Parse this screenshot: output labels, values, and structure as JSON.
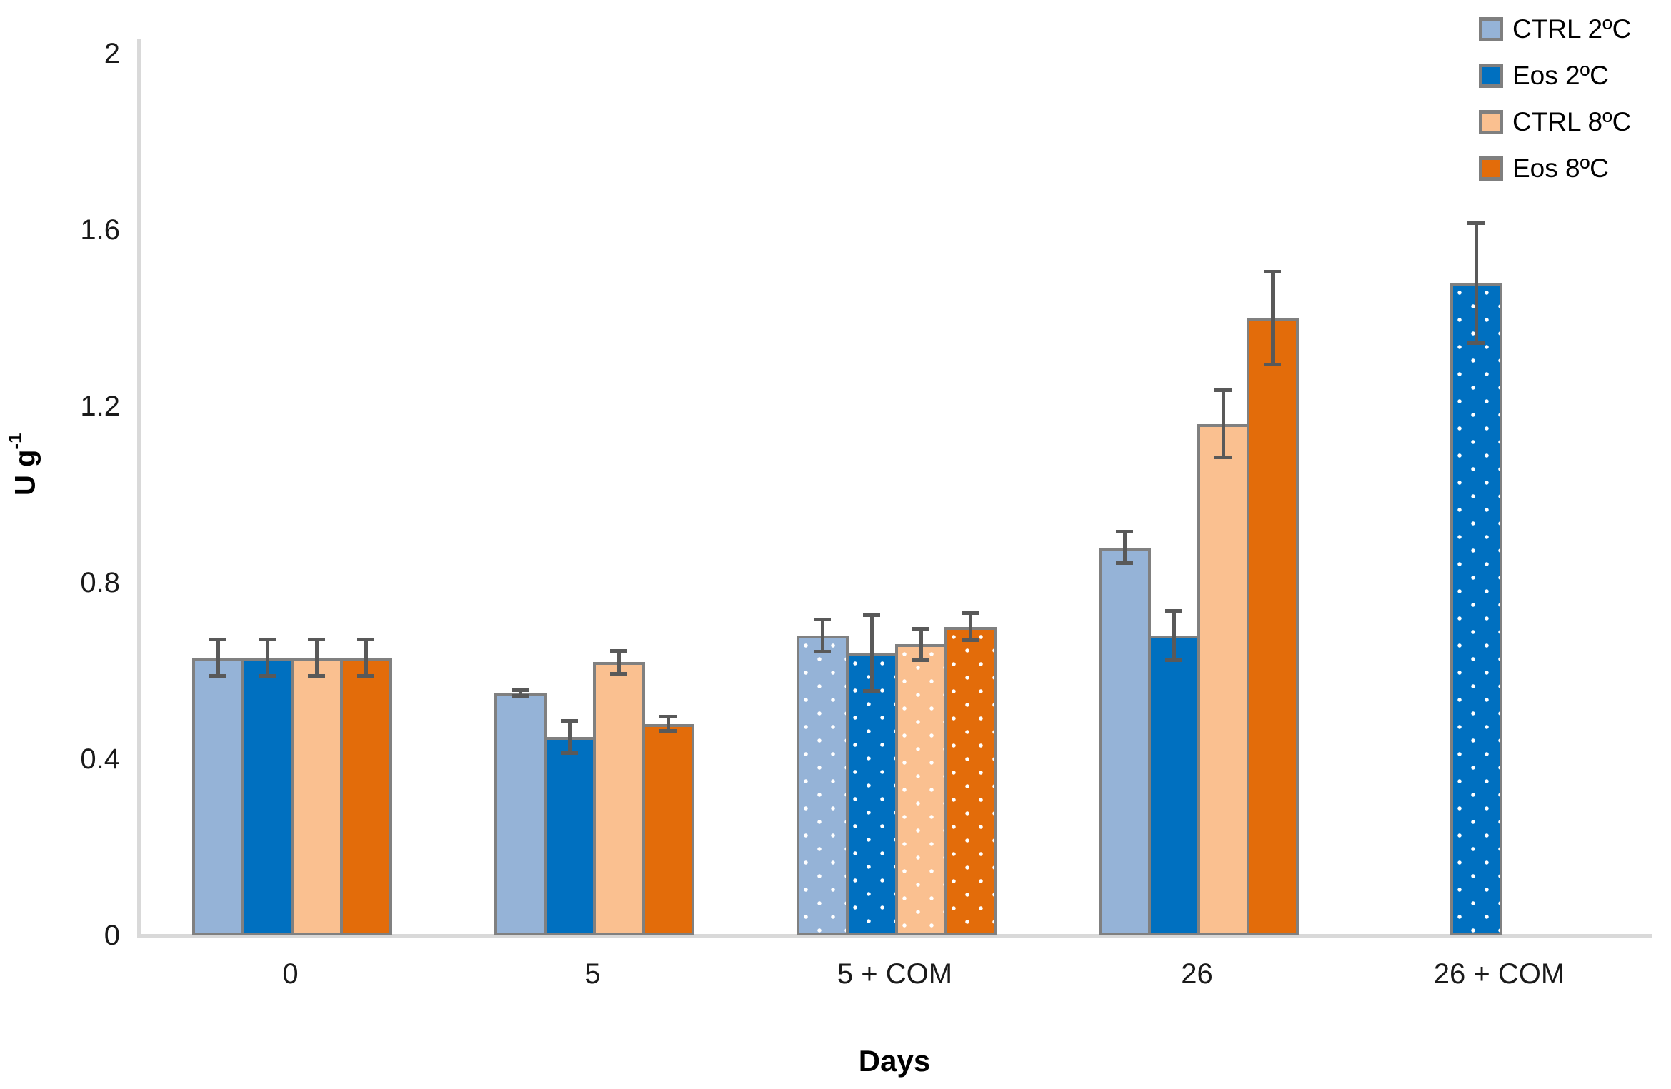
{
  "chart_data": {
    "type": "bar",
    "xlabel": "Days",
    "ylabel": {
      "base": "U g",
      "sup": "-1"
    },
    "ylim": [
      0,
      2
    ],
    "yticks": [
      "0",
      "0.4",
      "0.8",
      "1.2",
      "1.6",
      "2"
    ],
    "ytick_values": [
      0,
      0.4,
      0.8,
      1.2,
      1.6,
      2
    ],
    "categories": [
      "0",
      "5",
      "5 + COM",
      "26",
      "26 + COM"
    ],
    "dotted_category_indices": [
      2,
      4
    ],
    "grid": false,
    "legend_position": "top-right",
    "series": [
      {
        "name": "CTRL 2ºC",
        "color": "#95B3D7",
        "values": [
          0.63,
          0.55,
          0.68,
          0.88,
          null
        ],
        "errors": [
          0.045,
          0.01,
          0.04,
          0.04,
          null
        ]
      },
      {
        "name": "Eos 2ºC",
        "color": "#0070C0",
        "values": [
          0.63,
          0.45,
          0.64,
          0.68,
          1.48
        ],
        "errors": [
          0.045,
          0.04,
          0.09,
          0.06,
          0.14
        ]
      },
      {
        "name": "CTRL 8ºC",
        "color": "#FAC090",
        "values": [
          0.63,
          0.62,
          0.66,
          1.16,
          null
        ],
        "errors": [
          0.045,
          0.03,
          0.04,
          0.08,
          null
        ]
      },
      {
        "name": "Eos 8ºC",
        "color": "#E36C0A",
        "values": [
          0.63,
          0.48,
          0.7,
          1.4,
          null
        ],
        "errors": [
          0.045,
          0.02,
          0.035,
          0.11,
          null
        ]
      }
    ],
    "colors": {
      "bar_border": "#808080",
      "error_bar": "#595959",
      "axis_line": "#D9D9D9",
      "text": "#000000"
    }
  }
}
